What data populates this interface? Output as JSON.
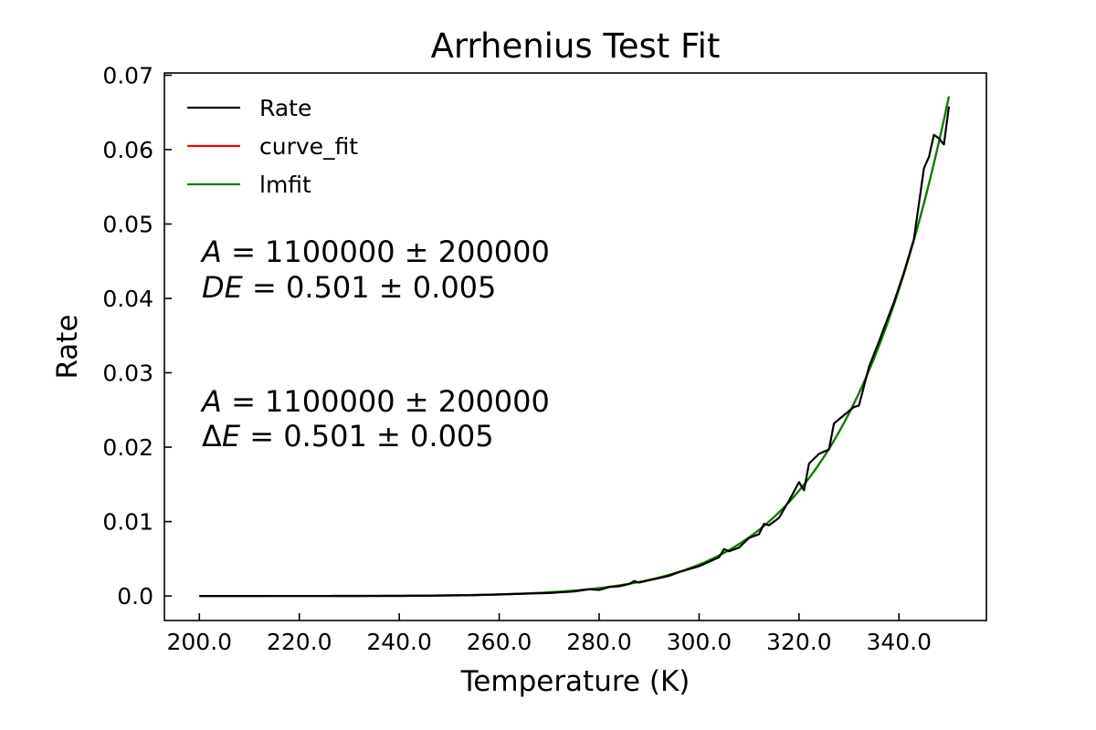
{
  "chart_data": {
    "type": "line",
    "title": "Arrhenius Test Fit",
    "xlabel": "Temperature (K)",
    "ylabel": "Rate",
    "xlim": [
      193,
      357.5
    ],
    "ylim": [
      -0.0033,
      0.0703
    ],
    "x_ticks": [
      200,
      220,
      240,
      260,
      280,
      300,
      320,
      340
    ],
    "x_tick_labels": [
      "200.0",
      "220.0",
      "240.0",
      "260.0",
      "280.0",
      "300.0",
      "320.0",
      "340.0"
    ],
    "y_ticks": [
      0.0,
      0.01,
      0.02,
      0.03,
      0.04,
      0.05,
      0.06,
      0.07
    ],
    "y_tick_labels": [
      "0.0",
      "0.01",
      "0.02",
      "0.03",
      "0.04",
      "0.05",
      "0.06",
      "0.07"
    ],
    "grid": false,
    "legend": {
      "placement": "upper-left"
    },
    "series": [
      {
        "name": "Rate",
        "color": "#000000",
        "x": [
          200,
          205,
          210,
          215,
          220,
          225,
          230,
          235,
          240,
          245,
          250,
          255,
          260,
          265,
          270,
          275,
          278,
          280,
          282,
          284,
          286,
          287,
          288,
          290,
          292,
          294,
          296,
          298,
          300,
          302,
          304,
          305,
          306,
          308,
          310,
          312,
          313,
          314,
          316,
          318,
          320,
          321,
          322,
          324,
          326,
          327,
          329,
          331,
          332,
          334,
          336,
          337,
          339,
          341,
          343,
          345,
          346,
          347,
          348,
          349,
          350
        ],
        "y": [
          0.0,
          0.0,
          0.0,
          0.0,
          0.0,
          0.0,
          0.0,
          0.0,
          0.0,
          3e-05,
          6e-05,
          0.0001,
          0.0002,
          0.0003,
          0.0004,
          0.0006,
          0.0009,
          0.0008,
          0.0012,
          0.0013,
          0.0016,
          0.002,
          0.0018,
          0.0021,
          0.0024,
          0.0027,
          0.0032,
          0.0036,
          0.004,
          0.0046,
          0.0052,
          0.0063,
          0.006,
          0.0065,
          0.0078,
          0.0083,
          0.0097,
          0.0095,
          0.0105,
          0.0128,
          0.0153,
          0.0142,
          0.0178,
          0.0191,
          0.0197,
          0.0232,
          0.0243,
          0.0254,
          0.0256,
          0.0308,
          0.0342,
          0.036,
          0.0395,
          0.0435,
          0.048,
          0.0575,
          0.059,
          0.062,
          0.0615,
          0.0607,
          0.0658
        ]
      },
      {
        "name": "curve_fit",
        "color": "#ff0000",
        "model": {
          "type": "arrhenius",
          "A": 1100000,
          "dE_eV": 0.501,
          "k_B_eV_per_K": 8.617e-05
        },
        "x_range": [
          200,
          350
        ]
      },
      {
        "name": "lmfit",
        "color": "#008000",
        "model": {
          "type": "arrhenius",
          "A": 1100000,
          "dE_eV": 0.501,
          "k_B_eV_per_K": 8.617e-05
        },
        "x_range": [
          200,
          350
        ]
      }
    ],
    "annotations": [
      {
        "lines": [
          "A = 1100000 ± 200000",
          "DE = 0.501 ± 0.005"
        ]
      },
      {
        "lines": [
          "A = 1100000 ± 200000",
          "ΔE = 0.501 ± 0.005"
        ]
      }
    ]
  }
}
